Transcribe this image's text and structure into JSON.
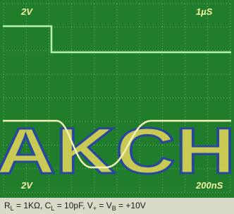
{
  "screen": {
    "labels": {
      "top_left": "2V",
      "top_right": "1µS",
      "bottom_left": "2V",
      "bottom_right": "200nS"
    },
    "watermark": "AKCH"
  },
  "caption": {
    "parts": [
      "R",
      "L",
      " = 1KΩ, C",
      "L",
      " = 10pF, V",
      "+",
      " = V",
      "B",
      " = +10V"
    ]
  }
}
